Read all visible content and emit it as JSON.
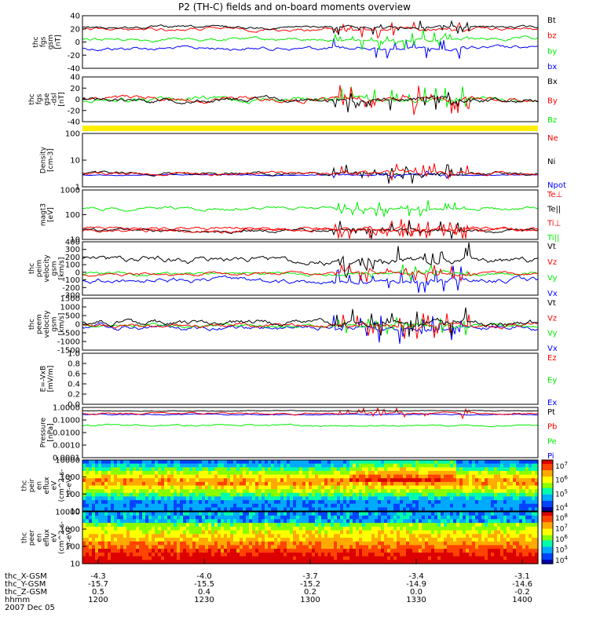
{
  "title": "P2 (TH-C) fields and on-board moments overview",
  "colors": {
    "black": "#000000",
    "red": "#ff0000",
    "green": "#00ee00",
    "blue": "#0000ff",
    "yellow": "#ffee00"
  },
  "chart_data": [
    {
      "type": "line",
      "panel": "fgs_gsm",
      "ylabel": [
        "thc",
        "fgs",
        "gsm",
        "[nT]"
      ],
      "ylim": [
        -40,
        40
      ],
      "yticks": [
        40,
        20,
        0,
        -20,
        -40
      ],
      "legend": [
        {
          "name": "Bt",
          "color": "black"
        },
        {
          "name": "bz",
          "color": "red"
        },
        {
          "name": "by",
          "color": "green"
        },
        {
          "name": "bx",
          "color": "blue"
        }
      ]
    },
    {
      "type": "line",
      "panel": "fgs_gse_dsl",
      "ylabel": [
        "thc",
        "fgs",
        "gse",
        "-dsl",
        "[nT]"
      ],
      "ylim": [
        -40,
        40
      ],
      "yticks": [
        40,
        20,
        0,
        -20,
        -40
      ],
      "legend": [
        {
          "name": "Bx",
          "color": "black"
        },
        {
          "name": "By",
          "color": "red"
        },
        {
          "name": "Bz",
          "color": "green"
        }
      ]
    },
    {
      "type": "bar",
      "panel": "status_bar",
      "color": "yellow"
    },
    {
      "type": "line",
      "panel": "density",
      "ylabel": [
        "Density",
        "[cm-3]"
      ],
      "ylim": [
        1,
        100
      ],
      "scale": "log",
      "yticks": [
        "100",
        "10",
        "1"
      ],
      "legend": [
        {
          "name": "Ne",
          "color": "red"
        },
        {
          "name": "Ni",
          "color": "black"
        },
        {
          "name": "Npot",
          "color": "blue"
        }
      ]
    },
    {
      "type": "line",
      "panel": "temperature",
      "ylabel": [
        "magt3",
        "[eV]"
      ],
      "ylim": [
        10,
        10000
      ],
      "scale": "log",
      "yticks": [
        "1000",
        "100",
        "10"
      ],
      "legend": [
        {
          "name": "Te⊥",
          "color": "red"
        },
        {
          "name": "Te||",
          "color": "black"
        },
        {
          "name": "Ti⊥",
          "color": "red"
        },
        {
          "name": "Ti||",
          "color": "green"
        }
      ]
    },
    {
      "type": "line",
      "panel": "peim_velocity",
      "ylabel": [
        "thc",
        "peim",
        "velocity",
        "gsm",
        "[km/s]"
      ],
      "ylim": [
        -300,
        400
      ],
      "yticks": [
        400,
        300,
        200,
        100,
        0,
        -100,
        -200,
        -300
      ],
      "legend": [
        {
          "name": "Vt",
          "color": "black"
        },
        {
          "name": "Vz",
          "color": "red"
        },
        {
          "name": "Vy",
          "color": "green"
        },
        {
          "name": "Vx",
          "color": "blue"
        }
      ]
    },
    {
      "type": "line",
      "panel": "peem_velocity",
      "ylabel": [
        "thc",
        "peem",
        "velocity",
        "gsm",
        "[km/s]"
      ],
      "ylim": [
        -1500,
        1500
      ],
      "yticks": [
        1500,
        1000,
        500,
        0,
        -500,
        -1000,
        -1500
      ],
      "legend": [
        {
          "name": "Vt",
          "color": "black"
        },
        {
          "name": "Vz",
          "color": "red"
        },
        {
          "name": "Vy",
          "color": "green"
        },
        {
          "name": "Vx",
          "color": "blue"
        }
      ]
    },
    {
      "type": "line",
      "panel": "e_field",
      "ylabel": [
        "E=-VxB",
        "[mV/m]"
      ],
      "ylim": [
        0,
        1
      ],
      "yticks": [
        "1.0",
        "0.8",
        "0.6",
        "0.4",
        "0.2",
        "0.0"
      ],
      "legend": [
        {
          "name": "Ez",
          "color": "red"
        },
        {
          "name": "Ey",
          "color": "green"
        },
        {
          "name": "Ex",
          "color": "blue"
        }
      ]
    },
    {
      "type": "line",
      "panel": "pressure",
      "ylabel": [
        "Pressure",
        "[nPa]"
      ],
      "ylim": [
        0.0001,
        1
      ],
      "scale": "log",
      "yticks": [
        "1.0000",
        "0.1000",
        "0.0100",
        "0.0010",
        "0.0001"
      ],
      "legend": [
        {
          "name": "Pt",
          "color": "black"
        },
        {
          "name": "Pb",
          "color": "red"
        },
        {
          "name": "Pe",
          "color": "green"
        },
        {
          "name": "Pi",
          "color": "blue"
        }
      ]
    },
    {
      "type": "heatmap",
      "panel": "peir_spectrogram",
      "ylabel": [
        "thc",
        "peir",
        "en",
        "eflux",
        "eV",
        "(cm^2-s-",
        "sr-eV)"
      ],
      "ylim": [
        10,
        10000
      ],
      "scale": "log",
      "yticks": [
        "10000",
        "1000",
        "100",
        "10"
      ],
      "colorbar": {
        "ticks": [
          "10^7",
          "10^6",
          "10^5",
          "10^4"
        ]
      }
    },
    {
      "type": "heatmap",
      "panel": "peer_spectrogram",
      "ylabel": [
        "thc",
        "peer",
        "en",
        "eflux",
        "eV",
        "(cm^2-s-",
        "sr-eV)"
      ],
      "ylim": [
        10,
        10000
      ],
      "scale": "log",
      "yticks": [
        "10000",
        "1000",
        "100",
        "10"
      ],
      "colorbar": {
        "ticks": [
          "10^8",
          "10^7",
          "10^6",
          "10^5",
          "10^4"
        ]
      }
    }
  ],
  "xaxis": {
    "row_labels": [
      "thc_X-GSM",
      "thc_Y-GSM",
      "thc_Z-GSM",
      "hhmm",
      "2007 Dec 05"
    ],
    "ticks": [
      {
        "x": "-4.3",
        "y": "-15.7",
        "z": "0.5",
        "t": "1200"
      },
      {
        "x": "-4.0",
        "y": "-15.5",
        "z": "0.4",
        "t": "1230"
      },
      {
        "x": "-3.7",
        "y": "-15.2",
        "z": "0.2",
        "t": "1300"
      },
      {
        "x": "-3.4",
        "y": "-14.9",
        "z": "0.0",
        "t": "1330"
      },
      {
        "x": "-3.1",
        "y": "-14.6",
        "z": "-0.2",
        "t": "1400"
      }
    ]
  }
}
